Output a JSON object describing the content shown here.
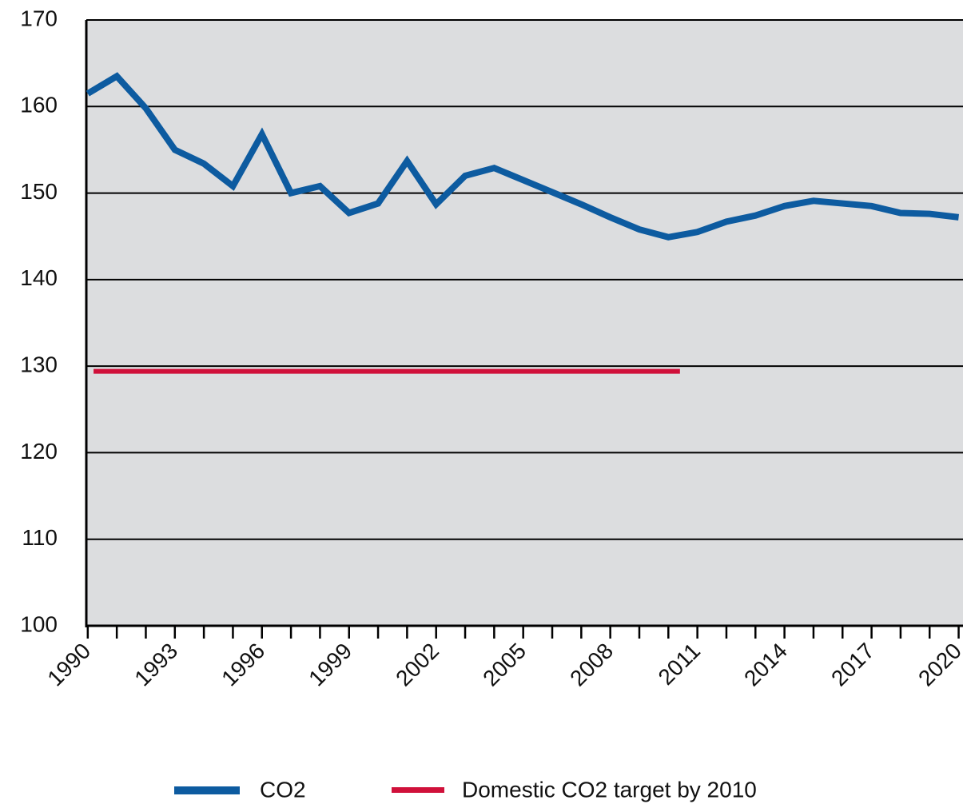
{
  "chart_data": {
    "type": "line",
    "xlim": [
      1989.95,
      2020.15
    ],
    "ylim": [
      100,
      170
    ],
    "yticks": [
      100,
      110,
      120,
      130,
      140,
      150,
      160,
      170
    ],
    "xticks": [
      1990,
      1993,
      1996,
      1999,
      2002,
      2005,
      2008,
      2011,
      2014,
      2017,
      2020
    ],
    "xminor_ticks": [
      1990,
      1991,
      1992,
      1993,
      1994,
      1995,
      1996,
      1997,
      1998,
      1999,
      2000,
      2001,
      2002,
      2003,
      2004,
      2005,
      2006,
      2007,
      2008,
      2009,
      2010,
      2011,
      2012,
      2013,
      2014,
      2015,
      2016,
      2017,
      2018,
      2019,
      2020
    ],
    "grid": true,
    "legend": "bottom",
    "series": [
      {
        "name": "CO2",
        "color": "#0d5ba0",
        "x": [
          1990,
          1991,
          1992,
          1993,
          1994,
          1995,
          1996,
          1997,
          1998,
          1999,
          2000,
          2001,
          2002,
          2003,
          2004,
          2005,
          2006,
          2007,
          2008,
          2009,
          2010,
          2011,
          2012,
          2013,
          2014,
          2015,
          2016,
          2017,
          2018,
          2019,
          2020
        ],
        "values": [
          161.5,
          163.5,
          159.8,
          155,
          153.4,
          150.8,
          156.8,
          150,
          150.8,
          147.7,
          148.8,
          153.7,
          148.7,
          152,
          152.9,
          151.5,
          150.1,
          148.7,
          147.2,
          145.8,
          144.9,
          145.5,
          146.7,
          147.4,
          148.5,
          149.1,
          148.8,
          148.5,
          147.7,
          147.6,
          147.2
        ]
      },
      {
        "name": "Domestic CO2 target by 2010",
        "color": "#d0103a",
        "x": [
          1990.2,
          2010.4
        ],
        "values": [
          129.4,
          129.4
        ]
      }
    ]
  }
}
